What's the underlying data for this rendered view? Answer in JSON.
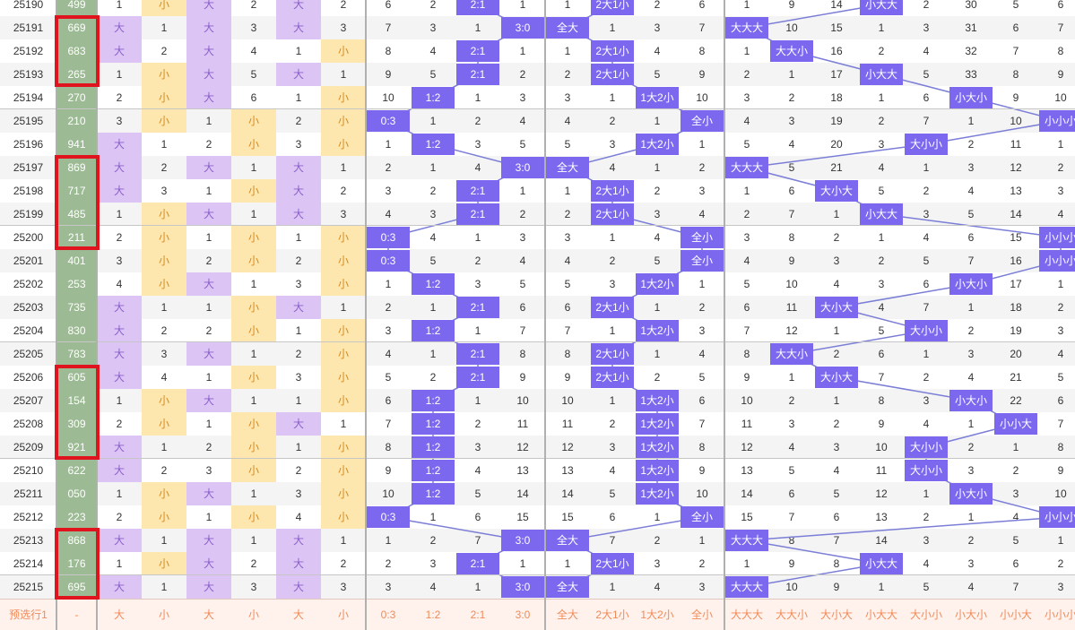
{
  "colors": {
    "green": "#9cba93",
    "purple": "#dcc4f5",
    "orange": "#fde7ae",
    "ball": "#7b68ee",
    "ball_text": "#ffffff",
    "line": "#7b7ed6",
    "highlight_box": "#e0141e",
    "footer_bg": "#fff1ec",
    "footer_text": "#f08c5a"
  },
  "rows": [
    {
      "issue": "25190",
      "number": "499",
      "zones": [
        "1",
        "小",
        "大",
        "2",
        "大",
        "2"
      ],
      "ratios": [
        "6",
        "2",
        "2:1",
        "1"
      ],
      "patterns": [
        "1",
        "2大1小",
        "2",
        "6"
      ],
      "shapes": [
        "1",
        "9",
        "14",
        "小大大",
        "2",
        "30",
        "5",
        "6"
      ]
    },
    {
      "issue": "25191",
      "number": "669",
      "zones": [
        "大",
        "1",
        "大",
        "3",
        "大",
        "3"
      ],
      "ratios": [
        "7",
        "3",
        "1",
        "3:0"
      ],
      "patterns": [
        "全大",
        "1",
        "3",
        "7"
      ],
      "shapes": [
        "大大大",
        "10",
        "15",
        "1",
        "3",
        "31",
        "6",
        "7"
      ]
    },
    {
      "issue": "25192",
      "number": "683",
      "zones": [
        "大",
        "2",
        "大",
        "4",
        "1",
        "小"
      ],
      "ratios": [
        "8",
        "4",
        "2:1",
        "1"
      ],
      "patterns": [
        "1",
        "2大1小",
        "4",
        "8"
      ],
      "shapes": [
        "1",
        "大大小",
        "16",
        "2",
        "4",
        "32",
        "7",
        "8"
      ]
    },
    {
      "issue": "25193",
      "number": "265",
      "zones": [
        "1",
        "小",
        "大",
        "5",
        "大",
        "1"
      ],
      "ratios": [
        "9",
        "5",
        "2:1",
        "2"
      ],
      "patterns": [
        "2",
        "2大1小",
        "5",
        "9"
      ],
      "shapes": [
        "2",
        "1",
        "17",
        "小大大",
        "5",
        "33",
        "8",
        "9"
      ]
    },
    {
      "issue": "25194",
      "number": "270",
      "zones": [
        "2",
        "小",
        "大",
        "6",
        "1",
        "小"
      ],
      "ratios": [
        "10",
        "1:2",
        "1",
        "3"
      ],
      "patterns": [
        "3",
        "1",
        "1大2小",
        "10"
      ],
      "shapes": [
        "3",
        "2",
        "18",
        "1",
        "6",
        "小大小",
        "9",
        "10"
      ]
    },
    {
      "issue": "25195",
      "number": "210",
      "zones": [
        "3",
        "小",
        "1",
        "小",
        "2",
        "小"
      ],
      "ratios": [
        "0:3",
        "1",
        "2",
        "4"
      ],
      "patterns": [
        "4",
        "2",
        "1",
        "全小"
      ],
      "shapes": [
        "4",
        "3",
        "19",
        "2",
        "7",
        "1",
        "10",
        "小小小"
      ]
    },
    {
      "issue": "25196",
      "number": "941",
      "zones": [
        "大",
        "1",
        "2",
        "小",
        "3",
        "小"
      ],
      "ratios": [
        "1",
        "1:2",
        "3",
        "5"
      ],
      "patterns": [
        "5",
        "3",
        "1大2小",
        "1"
      ],
      "shapes": [
        "5",
        "4",
        "20",
        "3",
        "大小小",
        "2",
        "11",
        "1"
      ]
    },
    {
      "issue": "25197",
      "number": "869",
      "zones": [
        "大",
        "2",
        "大",
        "1",
        "大",
        "1"
      ],
      "ratios": [
        "2",
        "1",
        "4",
        "3:0"
      ],
      "patterns": [
        "全大",
        "4",
        "1",
        "2"
      ],
      "shapes": [
        "大大大",
        "5",
        "21",
        "4",
        "1",
        "3",
        "12",
        "2"
      ]
    },
    {
      "issue": "25198",
      "number": "717",
      "zones": [
        "大",
        "3",
        "1",
        "小",
        "大",
        "2"
      ],
      "ratios": [
        "3",
        "2",
        "2:1",
        "1"
      ],
      "patterns": [
        "1",
        "2大1小",
        "2",
        "3"
      ],
      "shapes": [
        "1",
        "6",
        "大小大",
        "5",
        "2",
        "4",
        "13",
        "3"
      ]
    },
    {
      "issue": "25199",
      "number": "485",
      "zones": [
        "1",
        "小",
        "大",
        "1",
        "大",
        "3"
      ],
      "ratios": [
        "4",
        "3",
        "2:1",
        "2"
      ],
      "patterns": [
        "2",
        "2大1小",
        "3",
        "4"
      ],
      "shapes": [
        "2",
        "7",
        "1",
        "小大大",
        "3",
        "5",
        "14",
        "4"
      ]
    },
    {
      "issue": "25200",
      "number": "211",
      "zones": [
        "2",
        "小",
        "1",
        "小",
        "1",
        "小"
      ],
      "ratios": [
        "0:3",
        "4",
        "1",
        "3"
      ],
      "patterns": [
        "3",
        "1",
        "4",
        "全小"
      ],
      "shapes": [
        "3",
        "8",
        "2",
        "1",
        "4",
        "6",
        "15",
        "小小小"
      ]
    },
    {
      "issue": "25201",
      "number": "401",
      "zones": [
        "3",
        "小",
        "2",
        "小",
        "2",
        "小"
      ],
      "ratios": [
        "0:3",
        "5",
        "2",
        "4"
      ],
      "patterns": [
        "4",
        "2",
        "5",
        "全小"
      ],
      "shapes": [
        "4",
        "9",
        "3",
        "2",
        "5",
        "7",
        "16",
        "小小小"
      ]
    },
    {
      "issue": "25202",
      "number": "253",
      "zones": [
        "4",
        "小",
        "大",
        "1",
        "3",
        "小"
      ],
      "ratios": [
        "1",
        "1:2",
        "3",
        "5"
      ],
      "patterns": [
        "5",
        "3",
        "1大2小",
        "1"
      ],
      "shapes": [
        "5",
        "10",
        "4",
        "3",
        "6",
        "小大小",
        "17",
        "1"
      ]
    },
    {
      "issue": "25203",
      "number": "735",
      "zones": [
        "大",
        "1",
        "1",
        "小",
        "大",
        "1"
      ],
      "ratios": [
        "2",
        "1",
        "2:1",
        "6"
      ],
      "patterns": [
        "6",
        "2大1小",
        "1",
        "2"
      ],
      "shapes": [
        "6",
        "11",
        "大小大",
        "4",
        "7",
        "1",
        "18",
        "2"
      ]
    },
    {
      "issue": "25204",
      "number": "830",
      "zones": [
        "大",
        "2",
        "2",
        "小",
        "1",
        "小"
      ],
      "ratios": [
        "3",
        "1:2",
        "1",
        "7"
      ],
      "patterns": [
        "7",
        "1",
        "1大2小",
        "3"
      ],
      "shapes": [
        "7",
        "12",
        "1",
        "5",
        "大小小",
        "2",
        "19",
        "3"
      ]
    },
    {
      "issue": "25205",
      "number": "783",
      "zones": [
        "大",
        "3",
        "大",
        "1",
        "2",
        "小"
      ],
      "ratios": [
        "4",
        "1",
        "2:1",
        "8"
      ],
      "patterns": [
        "8",
        "2大1小",
        "1",
        "4"
      ],
      "shapes": [
        "8",
        "大大小",
        "2",
        "6",
        "1",
        "3",
        "20",
        "4"
      ]
    },
    {
      "issue": "25206",
      "number": "605",
      "zones": [
        "大",
        "4",
        "1",
        "小",
        "3",
        "小"
      ],
      "ratios": [
        "5",
        "2",
        "2:1",
        "9"
      ],
      "patterns": [
        "9",
        "2大1小",
        "2",
        "5"
      ],
      "shapes": [
        "9",
        "1",
        "大小大",
        "7",
        "2",
        "4",
        "21",
        "5"
      ]
    },
    {
      "issue": "25207",
      "number": "154",
      "zones": [
        "1",
        "小",
        "大",
        "1",
        "1",
        "小"
      ],
      "ratios": [
        "6",
        "1:2",
        "1",
        "10"
      ],
      "patterns": [
        "10",
        "1",
        "1大2小",
        "6"
      ],
      "shapes": [
        "10",
        "2",
        "1",
        "8",
        "3",
        "小大小",
        "22",
        "6"
      ]
    },
    {
      "issue": "25208",
      "number": "309",
      "zones": [
        "2",
        "小",
        "1",
        "小",
        "大",
        "1"
      ],
      "ratios": [
        "7",
        "1:2",
        "2",
        "11"
      ],
      "patterns": [
        "11",
        "2",
        "1大2小",
        "7"
      ],
      "shapes": [
        "11",
        "3",
        "2",
        "9",
        "4",
        "1",
        "小小大",
        "7"
      ]
    },
    {
      "issue": "25209",
      "number": "921",
      "zones": [
        "大",
        "1",
        "2",
        "小",
        "1",
        "小"
      ],
      "ratios": [
        "8",
        "1:2",
        "3",
        "12"
      ],
      "patterns": [
        "12",
        "3",
        "1大2小",
        "8"
      ],
      "shapes": [
        "12",
        "4",
        "3",
        "10",
        "大小小",
        "2",
        "1",
        "8"
      ]
    },
    {
      "issue": "25210",
      "number": "622",
      "zones": [
        "大",
        "2",
        "3",
        "小",
        "2",
        "小"
      ],
      "ratios": [
        "9",
        "1:2",
        "4",
        "13"
      ],
      "patterns": [
        "13",
        "4",
        "1大2小",
        "9"
      ],
      "shapes": [
        "13",
        "5",
        "4",
        "11",
        "大小小",
        "3",
        "2",
        "9"
      ]
    },
    {
      "issue": "25211",
      "number": "050",
      "zones": [
        "1",
        "小",
        "大",
        "1",
        "3",
        "小"
      ],
      "ratios": [
        "10",
        "1:2",
        "5",
        "14"
      ],
      "patterns": [
        "14",
        "5",
        "1大2小",
        "10"
      ],
      "shapes": [
        "14",
        "6",
        "5",
        "12",
        "1",
        "小大小",
        "3",
        "10"
      ]
    },
    {
      "issue": "25212",
      "number": "223",
      "zones": [
        "2",
        "小",
        "1",
        "小",
        "4",
        "小"
      ],
      "ratios": [
        "0:3",
        "1",
        "6",
        "15"
      ],
      "patterns": [
        "15",
        "6",
        "1",
        "全小"
      ],
      "shapes": [
        "15",
        "7",
        "6",
        "13",
        "2",
        "1",
        "4",
        "小小小"
      ]
    },
    {
      "issue": "25213",
      "number": "868",
      "zones": [
        "大",
        "1",
        "大",
        "1",
        "大",
        "1"
      ],
      "ratios": [
        "1",
        "2",
        "7",
        "3:0"
      ],
      "patterns": [
        "全大",
        "7",
        "2",
        "1"
      ],
      "shapes": [
        "大大大",
        "8",
        "7",
        "14",
        "3",
        "2",
        "5",
        "1"
      ]
    },
    {
      "issue": "25214",
      "number": "176",
      "zones": [
        "1",
        "小",
        "大",
        "2",
        "大",
        "2"
      ],
      "ratios": [
        "2",
        "3",
        "2:1",
        "1"
      ],
      "patterns": [
        "1",
        "2大1小",
        "3",
        "2"
      ],
      "shapes": [
        "1",
        "9",
        "8",
        "小大大",
        "4",
        "3",
        "6",
        "2"
      ]
    },
    {
      "issue": "25215",
      "number": "695",
      "zones": [
        "大",
        "1",
        "大",
        "3",
        "大",
        "3"
      ],
      "ratios": [
        "3",
        "4",
        "1",
        "3:0"
      ],
      "patterns": [
        "全大",
        "1",
        "4",
        "3"
      ],
      "shapes": [
        "大大大",
        "10",
        "9",
        "1",
        "5",
        "4",
        "7",
        "3"
      ]
    }
  ],
  "footer": [
    "预选行1",
    "-",
    "大",
    "小",
    "大",
    "小",
    "大",
    "小",
    "0:3",
    "1:2",
    "2:1",
    "3:0",
    "全大",
    "2大1小",
    "1大2小",
    "全小",
    "大大大",
    "大大小",
    "大小大",
    "小大大",
    "大小小",
    "小大小",
    "小小大",
    "小小小"
  ],
  "highlight_groups": [
    [
      "25191",
      "25193"
    ],
    [
      "25197",
      "25200"
    ],
    [
      "25206",
      "25209"
    ],
    [
      "25213",
      "25215"
    ]
  ]
}
